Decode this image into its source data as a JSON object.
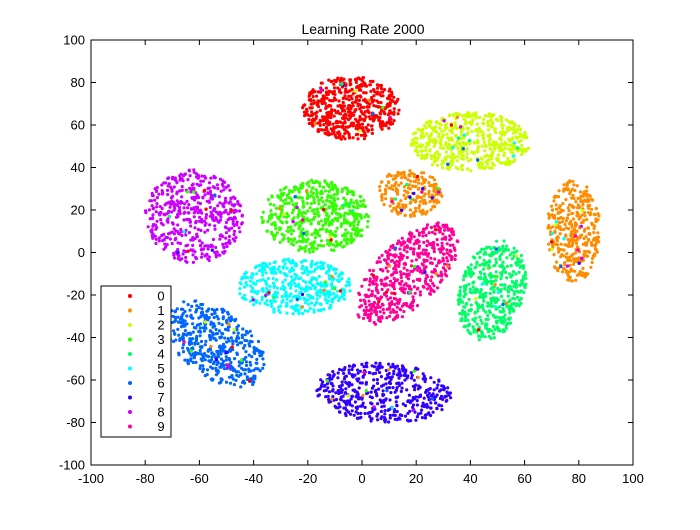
{
  "chart_data": {
    "type": "scatter",
    "title": "Learning Rate 2000",
    "xlabel": "",
    "ylabel": "",
    "xlim": [
      -100,
      100
    ],
    "ylim": [
      -100,
      100
    ],
    "xticks": [
      -100,
      -80,
      -60,
      -40,
      -20,
      0,
      20,
      40,
      60,
      80,
      100
    ],
    "yticks": [
      -100,
      -80,
      -60,
      -40,
      -20,
      0,
      20,
      40,
      60,
      80,
      100
    ],
    "grid": false,
    "legend_position": "bottom-left",
    "clusters": [
      {
        "name": "0",
        "color": "#ff0000",
        "center": [
          -4,
          68
        ],
        "radii": [
          18,
          15
        ],
        "rotation": 0,
        "count": 520
      },
      {
        "name": "1",
        "color": "#ff8c00",
        "center": [
          78,
          10
        ],
        "radii": [
          10,
          24
        ],
        "rotation": 0,
        "count": 360
      },
      {
        "name": "1",
        "color": "#ff8c00",
        "center": [
          18,
          28
        ],
        "radii": [
          12,
          11
        ],
        "rotation": -30,
        "count": 200
      },
      {
        "name": "2",
        "color": "#ccff00",
        "center": [
          40,
          52
        ],
        "radii": [
          22,
          14
        ],
        "rotation": 0,
        "count": 500
      },
      {
        "name": "3",
        "color": "#33ff00",
        "center": [
          -17,
          17
        ],
        "radii": [
          20,
          17
        ],
        "rotation": 0,
        "count": 520
      },
      {
        "name": "4",
        "color": "#00ff66",
        "center": [
          48,
          -18
        ],
        "radii": [
          12,
          24
        ],
        "rotation": -10,
        "count": 440
      },
      {
        "name": "5",
        "color": "#00ffff",
        "center": [
          -25,
          -16
        ],
        "radii": [
          21,
          13
        ],
        "rotation": 0,
        "count": 420
      },
      {
        "name": "6",
        "color": "#0066ff",
        "center": [
          -54,
          -43
        ],
        "radii": [
          24,
          14
        ],
        "rotation": 130,
        "count": 460
      },
      {
        "name": "7",
        "color": "#3300ff",
        "center": [
          8,
          -66
        ],
        "radii": [
          25,
          14
        ],
        "rotation": -5,
        "count": 460
      },
      {
        "name": "8",
        "color": "#cc00ff",
        "center": [
          -62,
          17
        ],
        "radii": [
          18,
          22
        ],
        "rotation": 0,
        "count": 480
      },
      {
        "name": "9",
        "color": "#ff0099",
        "center": [
          17,
          -10
        ],
        "radii": [
          28,
          13
        ],
        "rotation": 55,
        "count": 520
      }
    ],
    "legend": [
      {
        "label": "0",
        "color": "#ff0000"
      },
      {
        "label": "1",
        "color": "#ff8c00"
      },
      {
        "label": "2",
        "color": "#ccff00"
      },
      {
        "label": "3",
        "color": "#33ff00"
      },
      {
        "label": "4",
        "color": "#00ff66"
      },
      {
        "label": "5",
        "color": "#00ffff"
      },
      {
        "label": "6",
        "color": "#0066ff"
      },
      {
        "label": "7",
        "color": "#3300ff"
      },
      {
        "label": "8",
        "color": "#cc00ff"
      },
      {
        "label": "9",
        "color": "#ff0099"
      }
    ]
  }
}
